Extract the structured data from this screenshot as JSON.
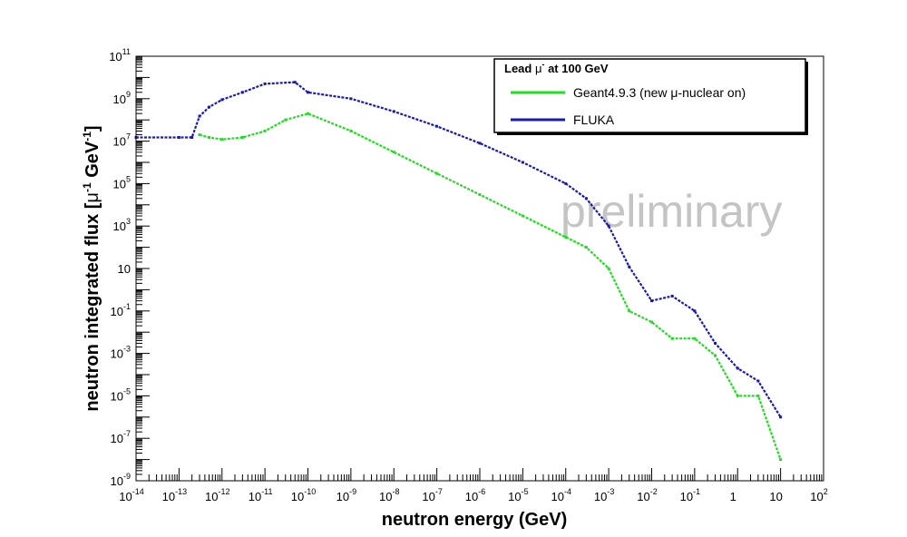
{
  "chart_data": {
    "type": "line",
    "title": "",
    "watermark": "preliminary",
    "xlabel": "neutron energy (GeV)",
    "ylabel": {
      "prefix": "neutron integrated flux [",
      "mu": "μ",
      "exp1": "-1",
      "mid": " GeV",
      "exp2": "-1",
      "suffix": "]"
    },
    "x_scale": "log",
    "y_scale": "log",
    "xlim": [
      1e-14,
      100
    ],
    "ylim": [
      1e-09,
      100000000000.0
    ],
    "x_ticks": [
      {
        "base": "10",
        "exp": "-14",
        "value": 1e-14
      },
      {
        "base": "10",
        "exp": "-13",
        "value": 1e-13
      },
      {
        "base": "10",
        "exp": "-12",
        "value": 1e-12
      },
      {
        "base": "10",
        "exp": "-11",
        "value": 1e-11
      },
      {
        "base": "10",
        "exp": "-10",
        "value": 1e-10
      },
      {
        "base": "10",
        "exp": "-9",
        "value": 1e-09
      },
      {
        "base": "10",
        "exp": "-8",
        "value": 1e-08
      },
      {
        "base": "10",
        "exp": "-7",
        "value": 1e-07
      },
      {
        "base": "10",
        "exp": "-6",
        "value": 1e-06
      },
      {
        "base": "10",
        "exp": "-5",
        "value": 1e-05
      },
      {
        "base": "10",
        "exp": "-4",
        "value": 0.0001
      },
      {
        "base": "10",
        "exp": "-3",
        "value": 0.001
      },
      {
        "base": "10",
        "exp": "-2",
        "value": 0.01
      },
      {
        "base": "10",
        "exp": "-1",
        "value": 0.1
      },
      {
        "base": "1",
        "exp": "",
        "value": 1
      },
      {
        "base": "10",
        "exp": "",
        "value": 10
      },
      {
        "base": "10",
        "exp": "2",
        "value": 100
      }
    ],
    "y_ticks": [
      {
        "base": "10",
        "exp": "-9",
        "value": 1e-09
      },
      {
        "base": "10",
        "exp": "-7",
        "value": 1e-07
      },
      {
        "base": "10",
        "exp": "-5",
        "value": 1e-05
      },
      {
        "base": "10",
        "exp": "-3",
        "value": 0.001
      },
      {
        "base": "10",
        "exp": "-1",
        "value": 0.1
      },
      {
        "base": "10",
        "exp": "",
        "value": 10
      },
      {
        "base": "10",
        "exp": "3",
        "value": 1000.0
      },
      {
        "base": "10",
        "exp": "5",
        "value": 100000.0
      },
      {
        "base": "10",
        "exp": "7",
        "value": 10000000.0
      },
      {
        "base": "10",
        "exp": "9",
        "value": 1000000000.0
      },
      {
        "base": "10",
        "exp": "11",
        "value": 100000000000.0
      }
    ],
    "legend": {
      "position": "top-right",
      "title_pre": "Lead ",
      "title_mu": "μ",
      "title_exp": "-",
      "title_post": " at 100 GeV",
      "entries": [
        {
          "label": "Geant4.9.3 (new μ-nuclear on)",
          "color": "#22dd22"
        },
        {
          "label": "FLUKA",
          "color": "#1a1ab0"
        }
      ]
    },
    "series": [
      {
        "name": "FLUKA",
        "color": "#1a1ab0",
        "x": [
          1e-14,
          1e-13,
          2e-13,
          3e-13,
          5e-13,
          1e-12,
          3e-12,
          1e-11,
          5e-11,
          1e-10,
          1e-09,
          1e-08,
          1e-07,
          1e-06,
          1e-05,
          0.0001,
          0.0003,
          0.001,
          0.003,
          0.01,
          0.03,
          0.1,
          0.3,
          1,
          3,
          10
        ],
        "y": [
          15000000.0,
          15000000.0,
          15000000.0,
          150000000.0,
          400000000.0,
          900000000.0,
          2000000000.0,
          5000000000.0,
          6000000000.0,
          2000000000.0,
          1000000000.0,
          250000000.0,
          50000000.0,
          8000000.0,
          1000000.0,
          100000.0,
          20000.0,
          1000.0,
          12.0,
          0.3,
          0.5,
          0.1,
          0.003,
          0.0002,
          5e-05,
          1e-06
        ]
      },
      {
        "name": "Geant4.9.3 (new μ-nuclear on)",
        "color": "#22dd22",
        "x": [
          3e-13,
          5e-13,
          1e-12,
          3e-12,
          1e-11,
          3e-11,
          1e-10,
          1e-09,
          1e-08,
          1e-07,
          1e-06,
          1e-05,
          0.0001,
          0.0003,
          0.001,
          0.003,
          0.01,
          0.03,
          0.1,
          0.3,
          1,
          3,
          10
        ],
        "y": [
          20000000.0,
          15000000.0,
          12000000.0,
          15000000.0,
          30000000.0,
          100000000.0,
          200000000.0,
          30000000.0,
          3000000.0,
          300000.0,
          30000.0,
          3000.0,
          300.0,
          100.0,
          10.0,
          0.1,
          0.03,
          0.005,
          0.005,
          0.0008,
          1e-05,
          1e-05,
          1e-08
        ]
      }
    ]
  }
}
